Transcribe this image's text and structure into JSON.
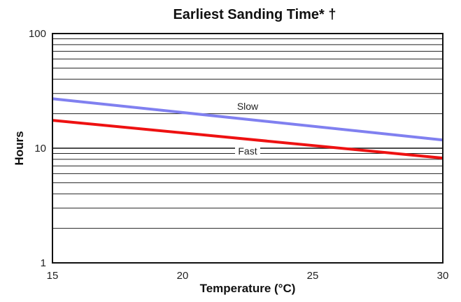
{
  "chart_data": {
    "type": "line",
    "title": "Earliest Sanding Time* †",
    "xlabel": "Temperature (°C)",
    "ylabel": "Hours",
    "xlim": [
      15,
      30
    ],
    "ylim": [
      1,
      100
    ],
    "yscale": "log",
    "x_ticks": [
      "15",
      "20",
      "25",
      "30"
    ],
    "y_ticks": [
      "1",
      "10",
      "100"
    ],
    "grid": "horizontal",
    "legend": "inline labels",
    "series": [
      {
        "name": "Slow",
        "color": "#8080f0",
        "x": [
          15,
          30
        ],
        "y": [
          27,
          11.8
        ]
      },
      {
        "name": "Fast",
        "color": "#ee1111",
        "x": [
          15,
          30
        ],
        "y": [
          17.5,
          8.2
        ]
      }
    ]
  }
}
